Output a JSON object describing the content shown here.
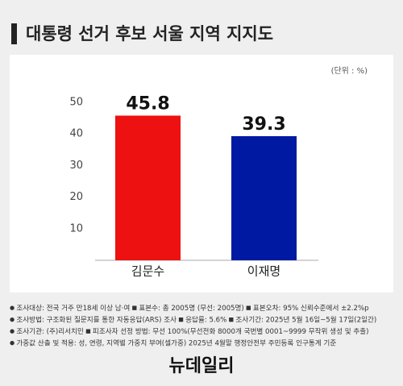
{
  "chart_data": {
    "type": "bar",
    "title": "대통령 선거 후보 서울 지역 지지도",
    "unit_label": "(단위 : %)",
    "categories": [
      "김문수",
      "이재명"
    ],
    "values": [
      45.8,
      39.3
    ],
    "colors": [
      "#ee1111",
      "#0019a3"
    ],
    "ylim": [
      0,
      50
    ],
    "yticks": [
      10,
      20,
      30,
      40,
      50
    ],
    "grid": false,
    "notes": [
      [
        "조사대상: 전국 거주 만18세 이상 남·여",
        "표본수: 총 2005명 (무선: 2005명)",
        "표본오차: 95% 신뢰수준에서 ±2.2%p"
      ],
      [
        "조사방법: 구조화된 질문지를 통한 자동응답(ARS) 조사",
        "응답률: 5.6%",
        "조사기간: 2025년 5월 16일~5월 17일(2일간)"
      ],
      [
        "조사기관: (주)리서치민",
        "피조사자 선정 방법: 무선 100%(무선전화 8000개 국번별 0001~9999 무작위 생성 및 추출)"
      ],
      [
        "가중값 산출 및 적용: 성, 연령, 지역별 가중치 부여(셀가중) 2025년 4월말 행정안전부 주민등록 인구통계 기준"
      ]
    ],
    "source": "뉴데일리"
  }
}
